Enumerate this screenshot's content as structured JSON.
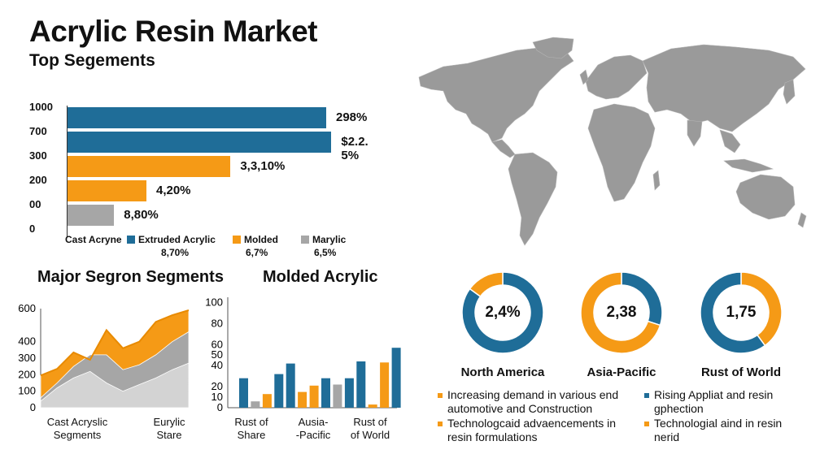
{
  "header": {
    "title": "Acrylic Resin Market",
    "subtitle": "Top Segements"
  },
  "colors": {
    "blue": "#1f6d98",
    "orange": "#f59a16",
    "gray": "#a6a6a6",
    "map": "#9a9a9a"
  },
  "chart_data": [
    {
      "type": "bar",
      "orientation": "horizontal",
      "title": "Top Segements",
      "y_tick_labels": [
        "1000",
        "700",
        "300",
        "200",
        "00",
        "0"
      ],
      "bars": [
        {
          "label": "298%",
          "value": 1000,
          "color": "blue"
        },
        {
          "label": "$2.2. 5%",
          "value": 1020,
          "color": "blue"
        },
        {
          "label": "3,3,10%",
          "value": 630,
          "color": "orange"
        },
        {
          "label": "4,20%",
          "value": 305,
          "color": "orange"
        },
        {
          "label": "8,80%",
          "value": 180,
          "color": "gray"
        }
      ],
      "xlim": [
        0,
        1100
      ],
      "legend": [
        {
          "name": "Cast Acryne",
          "value": "",
          "color": ""
        },
        {
          "name": "Extruded Acrylic",
          "value": "8,70%",
          "color": "blue"
        },
        {
          "name": "Molded",
          "value": "6,7%",
          "color": "orange"
        },
        {
          "name": "Marylic",
          "value": "6,5%",
          "color": "gray"
        }
      ]
    },
    {
      "type": "area",
      "title": "Major Segron Segments",
      "y_ticks": [
        0,
        100,
        200,
        300,
        400,
        600
      ],
      "ylim": [
        0,
        600
      ],
      "x_labels": [
        "Cast Acryslic\nSegments",
        "Eurylic\nStare"
      ],
      "series": [
        {
          "color": "orange",
          "values": [
            195,
            235,
            335,
            290,
            470,
            360,
            400,
            520,
            560,
            590
          ]
        },
        {
          "color": "gray",
          "values": [
            60,
            150,
            250,
            320,
            320,
            230,
            260,
            320,
            400,
            460
          ]
        },
        {
          "color": "lightgray",
          "values": [
            40,
            120,
            180,
            220,
            150,
            100,
            140,
            180,
            230,
            270
          ]
        }
      ],
      "peak_line": {
        "color": "orange",
        "values": [
          195,
          235,
          335,
          290,
          470,
          360,
          400,
          520,
          560,
          590
        ]
      }
    },
    {
      "type": "bar",
      "title": "Molded Acrylic",
      "y_ticks": [
        0,
        10,
        20,
        40,
        50,
        60,
        80,
        100
      ],
      "ylim": [
        0,
        105
      ],
      "x_labels": [
        "Rust of\nShare",
        "Ausia-\n-Pacific",
        "Rust of\nof World"
      ],
      "bars": [
        {
          "value": 28,
          "color": "blue"
        },
        {
          "value": 6,
          "color": "gray"
        },
        {
          "value": 13,
          "color": "orange"
        },
        {
          "value": 32,
          "color": "blue"
        },
        {
          "value": 42,
          "color": "blue"
        },
        {
          "value": 15,
          "color": "orange"
        },
        {
          "value": 21,
          "color": "orange"
        },
        {
          "value": 28,
          "color": "blue"
        },
        {
          "value": 22,
          "color": "gray"
        },
        {
          "value": 28,
          "color": "blue"
        },
        {
          "value": 44,
          "color": "blue"
        },
        {
          "value": 3,
          "color": "orange"
        },
        {
          "value": 43,
          "color": "orange"
        },
        {
          "value": 57,
          "color": "blue"
        }
      ]
    },
    {
      "type": "pie",
      "title": "North America",
      "center_label": "2,4%",
      "slices": [
        {
          "color": "blue",
          "fraction": 0.85
        },
        {
          "color": "orange",
          "fraction": 0.15
        }
      ]
    },
    {
      "type": "pie",
      "title": "Asia-Pacific",
      "center_label": "2,38",
      "slices": [
        {
          "color": "blue",
          "fraction": 0.3
        },
        {
          "color": "orange",
          "fraction": 0.7
        }
      ]
    },
    {
      "type": "pie",
      "title": "Rust of World",
      "center_label": "1,75",
      "slices": [
        {
          "color": "orange",
          "fraction": 0.4
        },
        {
          "color": "blue",
          "fraction": 0.6
        }
      ]
    }
  ],
  "notes": [
    {
      "color": "orange",
      "text": "Increasing demand in various end automotive and Construction"
    },
    {
      "color": "blue",
      "text": "Rising Appliat and resin gphection"
    },
    {
      "color": "orange",
      "text": "Technologcaid advaencements in resin formulations"
    },
    {
      "color": "orange",
      "text": "Technologial aind in resin nerid"
    }
  ]
}
